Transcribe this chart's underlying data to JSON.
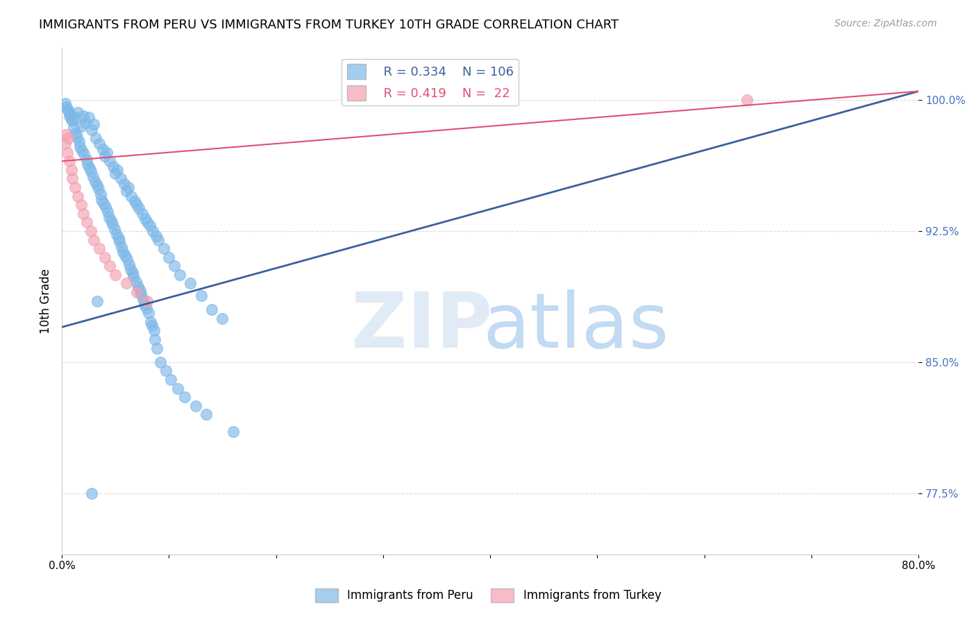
{
  "title": "IMMIGRANTS FROM PERU VS IMMIGRANTS FROM TURKEY 10TH GRADE CORRELATION CHART",
  "source": "Source: ZipAtlas.com",
  "ylabel": "10th Grade",
  "xmin": 0.0,
  "xmax": 80.0,
  "ymin": 74.0,
  "ymax": 103.0,
  "legend_peru": "Immigrants from Peru",
  "legend_turkey": "Immigrants from Turkey",
  "r_peru": "0.334",
  "n_peru": "106",
  "r_turkey": "0.419",
  "n_turkey": "22",
  "color_peru": "#7EB8E8",
  "color_turkey": "#F4A0B0",
  "color_line_peru": "#3A5FA0",
  "color_line_turkey": "#E05070",
  "peru_x": [
    0.5,
    0.8,
    1.0,
    1.2,
    1.5,
    1.8,
    2.0,
    2.2,
    2.5,
    2.8,
    3.0,
    3.2,
    3.5,
    3.8,
    4.0,
    4.2,
    4.5,
    4.8,
    5.0,
    5.2,
    5.5,
    5.8,
    6.0,
    6.2,
    6.5,
    6.8,
    7.0,
    7.2,
    7.5,
    7.8,
    8.0,
    8.2,
    8.5,
    8.8,
    9.0,
    9.5,
    10.0,
    10.5,
    11.0,
    12.0,
    13.0,
    14.0,
    15.0,
    0.3,
    0.4,
    0.6,
    0.7,
    0.9,
    1.1,
    1.3,
    1.4,
    1.6,
    1.7,
    1.9,
    2.1,
    2.3,
    2.4,
    2.6,
    2.7,
    2.9,
    3.1,
    3.3,
    3.4,
    3.6,
    3.7,
    3.9,
    4.1,
    4.3,
    4.4,
    4.6,
    4.7,
    4.9,
    5.1,
    5.3,
    5.4,
    5.6,
    5.7,
    5.9,
    6.1,
    6.3,
    6.4,
    6.6,
    6.7,
    6.9,
    7.1,
    7.3,
    7.4,
    7.6,
    7.7,
    7.9,
    8.1,
    8.3,
    8.4,
    8.6,
    8.7,
    8.9,
    9.2,
    9.7,
    10.2,
    10.8,
    11.5,
    12.5,
    13.5,
    16.0,
    2.8,
    3.3
  ],
  "peru_y": [
    99.5,
    99.2,
    98.8,
    99.0,
    99.3,
    98.5,
    99.1,
    98.7,
    99.0,
    98.3,
    98.6,
    97.8,
    97.5,
    97.2,
    96.8,
    97.0,
    96.5,
    96.2,
    95.8,
    96.0,
    95.5,
    95.2,
    94.8,
    95.0,
    94.5,
    94.2,
    94.0,
    93.8,
    93.5,
    93.2,
    93.0,
    92.8,
    92.5,
    92.2,
    92.0,
    91.5,
    91.0,
    90.5,
    90.0,
    89.5,
    88.8,
    88.0,
    87.5,
    99.8,
    99.6,
    99.4,
    99.1,
    98.9,
    98.4,
    98.1,
    97.9,
    97.6,
    97.3,
    97.1,
    96.9,
    96.6,
    96.3,
    96.1,
    95.9,
    95.6,
    95.3,
    95.1,
    94.9,
    94.6,
    94.3,
    94.1,
    93.9,
    93.6,
    93.3,
    93.1,
    92.9,
    92.6,
    92.3,
    92.1,
    91.9,
    91.6,
    91.3,
    91.1,
    90.9,
    90.6,
    90.3,
    90.1,
    89.9,
    89.6,
    89.3,
    89.1,
    88.9,
    88.6,
    88.3,
    88.1,
    87.8,
    87.3,
    87.1,
    86.8,
    86.3,
    85.8,
    85.0,
    84.5,
    84.0,
    83.5,
    83.0,
    82.5,
    82.0,
    81.0,
    77.5,
    88.5
  ],
  "turkey_x": [
    0.3,
    0.5,
    0.7,
    0.9,
    1.0,
    1.2,
    1.5,
    1.8,
    2.0,
    2.3,
    2.7,
    3.0,
    3.5,
    4.0,
    4.5,
    5.0,
    6.0,
    7.0,
    8.0,
    64.0,
    0.4,
    0.6
  ],
  "turkey_y": [
    97.5,
    97.0,
    96.5,
    96.0,
    95.5,
    95.0,
    94.5,
    94.0,
    93.5,
    93.0,
    92.5,
    92.0,
    91.5,
    91.0,
    90.5,
    90.0,
    89.5,
    89.0,
    88.5,
    100.0,
    98.0,
    97.8
  ],
  "peru_line_x": [
    0,
    80
  ],
  "peru_line_y": [
    87.0,
    100.5
  ],
  "turkey_line_x": [
    0,
    80
  ],
  "turkey_line_y": [
    96.5,
    100.5
  ]
}
